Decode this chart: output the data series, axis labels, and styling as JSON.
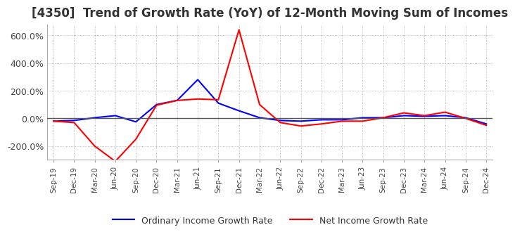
{
  "title": "[4350]  Trend of Growth Rate (YoY) of 12-Month Moving Sum of Incomes",
  "title_fontsize": 12,
  "legend_entries": [
    "Ordinary Income Growth Rate",
    "Net Income Growth Rate"
  ],
  "line_colors": [
    "blue",
    "red"
  ],
  "ylim": [
    -300,
    680
  ],
  "yticks": [
    -200,
    0,
    200,
    400,
    600
  ],
  "ytick_labels": [
    "-200.0%",
    "0.0%",
    "200.0%",
    "400.0%",
    "600.0%"
  ],
  "background_color": "#ffffff",
  "grid_color": "#aaaaaa",
  "dates": [
    "Sep-19",
    "Dec-19",
    "Mar-20",
    "Jun-20",
    "Sep-20",
    "Dec-20",
    "Mar-21",
    "Jun-21",
    "Sep-21",
    "Dec-21",
    "Mar-22",
    "Jun-22",
    "Sep-22",
    "Dec-22",
    "Mar-23",
    "Jun-23",
    "Sep-23",
    "Dec-23",
    "Mar-24",
    "Jun-24",
    "Sep-24",
    "Dec-24"
  ],
  "ordinary_income": [
    -20,
    -15,
    5,
    20,
    -25,
    100,
    130,
    280,
    110,
    55,
    5,
    -15,
    -20,
    -10,
    -10,
    5,
    5,
    20,
    15,
    20,
    5,
    -40
  ],
  "net_income": [
    -20,
    -30,
    -200,
    -310,
    -150,
    95,
    130,
    140,
    135,
    640,
    100,
    -30,
    -55,
    -40,
    -20,
    -20,
    5,
    40,
    20,
    45,
    0,
    -50
  ]
}
